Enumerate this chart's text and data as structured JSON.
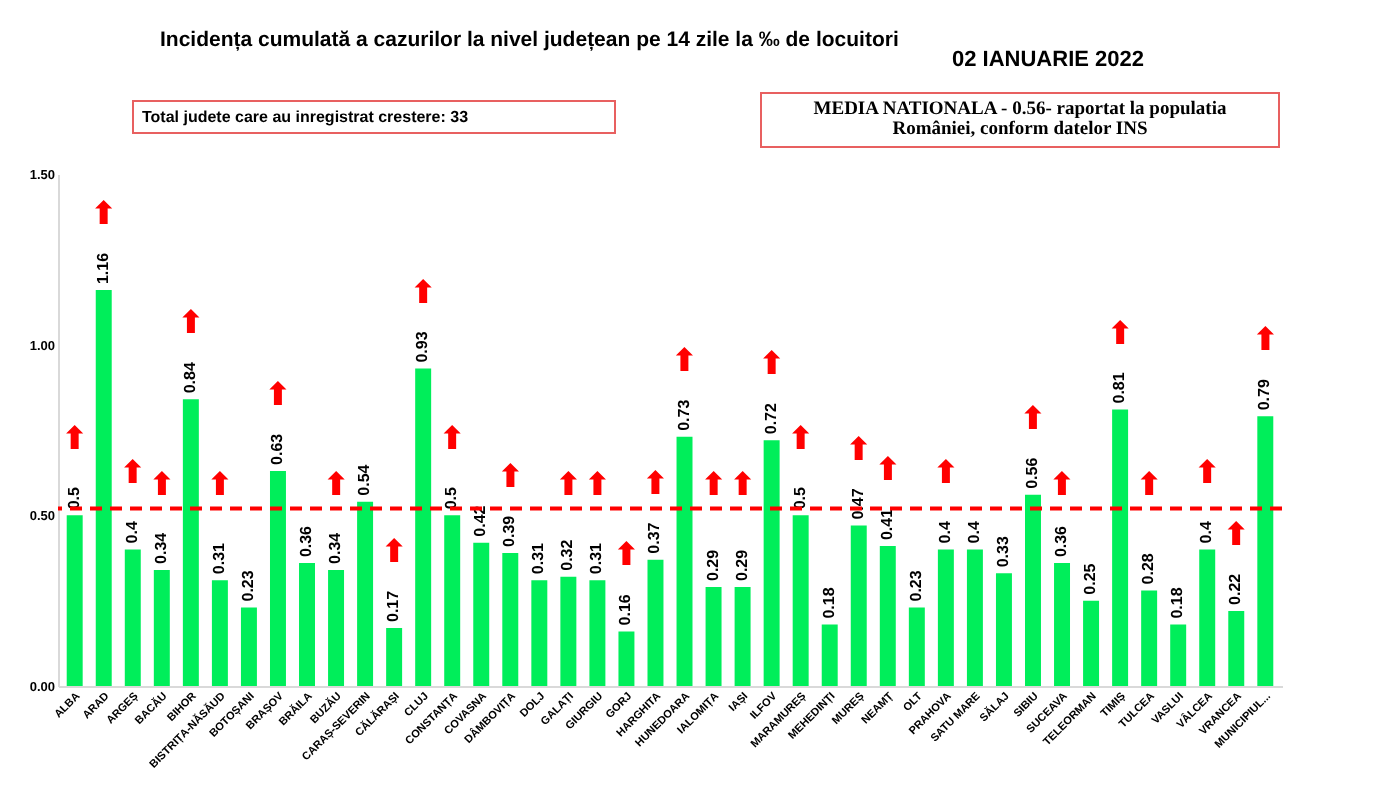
{
  "chart_data": {
    "type": "bar",
    "title": "Incidența cumulată a cazurilor la nivel județean pe 14 zile la ‰ de locuitori",
    "subtitle": "02 IANUARIE 2022",
    "categories": [
      "ALBA",
      "ARAD",
      "ARGEȘ",
      "BACĂU",
      "BIHOR",
      "BISTRIȚA-NĂSĂUD",
      "BOTOȘANI",
      "BRAȘOV",
      "BRĂILA",
      "BUZĂU",
      "CARAȘ-SEVERIN",
      "CĂLĂRAȘI",
      "CLUJ",
      "CONSTANȚA",
      "COVASNA",
      "DÂMBOVIȚA",
      "DOLJ",
      "GALAȚI",
      "GIURGIU",
      "GORJ",
      "HARGHITA",
      "HUNEDOARA",
      "IALOMIȚA",
      "IAȘI",
      "ILFOV",
      "MARAMUREȘ",
      "MEHEDINȚI",
      "MUREȘ",
      "NEAMȚ",
      "OLT",
      "PRAHOVA",
      "SATU MARE",
      "SĂLAJ",
      "SIBIU",
      "SUCEAVA",
      "TELEORMAN",
      "TIMIȘ",
      "TULCEA",
      "VASLUI",
      "VÂLCEA",
      "VRANCEA",
      "MUNICIPIUL..."
    ],
    "values": [
      0.5,
      1.16,
      0.4,
      0.34,
      0.84,
      0.31,
      0.23,
      0.63,
      0.36,
      0.34,
      0.54,
      0.17,
      0.93,
      0.5,
      0.42,
      0.39,
      0.31,
      0.32,
      0.31,
      0.16,
      0.37,
      0.73,
      0.29,
      0.29,
      0.72,
      0.5,
      0.18,
      0.47,
      0.41,
      0.23,
      0.4,
      0.4,
      0.33,
      0.56,
      0.36,
      0.25,
      0.81,
      0.28,
      0.18,
      0.4,
      0.22,
      0.79
    ],
    "color": "#00ee5a",
    "data_labels": true,
    "ylim": [
      0,
      1.5
    ],
    "yticks": [
      {
        "value": 0,
        "label": "0.00"
      },
      {
        "value": 0.5,
        "label": "0.50"
      },
      {
        "value": 1,
        "label": "1.00"
      },
      {
        "value": 1.5,
        "label": "1.50"
      }
    ],
    "grid": false,
    "ref_lines": [
      {
        "axis": "y",
        "value": 0.52,
        "color": "#ff0000",
        "line_style": "dashed"
      }
    ],
    "annotations": [
      "Total judete care au inregistrat crestere: 33",
      "MEDIA NATIONALA - 0.56-  raportat la populatia României, conform datelor INS",
      {
        "text": "⬆",
        "x": "ALBA",
        "y": 0.5
      },
      {
        "text": "⬆",
        "x": "ARAD",
        "y": 1.16
      },
      {
        "text": "⬆",
        "x": "ARGEȘ",
        "y": 0.4
      },
      {
        "text": "⬆",
        "x": "BACĂU",
        "y": 0.34
      },
      {
        "text": "⬆",
        "x": "BIHOR",
        "y": 0.84
      },
      {
        "text": "⬆",
        "x": "BISTRIȚA-NĂSĂUD",
        "y": 0.31
      },
      {
        "text": "⬆",
        "x": "BRAȘOV",
        "y": 0.63
      },
      {
        "text": "⬆",
        "x": "BUZĂU",
        "y": 0.34
      },
      {
        "text": "⬆",
        "x": "CĂLĂRAȘI",
        "y": 0.17
      },
      {
        "text": "⬆",
        "x": "CLUJ",
        "y": 0.93
      },
      {
        "text": "⬆",
        "x": "CONSTANȚA",
        "y": 0.5
      },
      {
        "text": "⬆",
        "x": "DÂMBOVIȚA",
        "y": 0.39
      },
      {
        "text": "⬆",
        "x": "GALAȚI",
        "y": 0.32
      },
      {
        "text": "⬆",
        "x": "GIURGIU",
        "y": 0.31
      },
      {
        "text": "⬆",
        "x": "GORJ",
        "y": 0.16
      },
      {
        "text": "⬆",
        "x": "HARGHITA",
        "y": 0.37
      },
      {
        "text": "⬆",
        "x": "HUNEDOARA",
        "y": 0.73
      },
      {
        "text": "⬆",
        "x": "IALOMIȚA",
        "y": 0.29
      },
      {
        "text": "⬆",
        "x": "IAȘI",
        "y": 0.29
      },
      {
        "text": "⬆",
        "x": "ILFOV",
        "y": 0.72
      },
      {
        "text": "⬆",
        "x": "MARAMUREȘ",
        "y": 0.5
      },
      {
        "text": "⬆",
        "x": "MUREȘ",
        "y": 0.47
      },
      {
        "text": "⬆",
        "x": "NEAMȚ",
        "y": 0.41
      },
      {
        "text": "⬆",
        "x": "PRAHOVA",
        "y": 0.4
      },
      {
        "text": "⬆",
        "x": "SIBIU",
        "y": 0.56
      },
      {
        "text": "⬆",
        "x": "SUCEAVA",
        "y": 0.36
      },
      {
        "text": "⬆",
        "x": "TIMIȘ",
        "y": 0.81
      },
      {
        "text": "⬆",
        "x": "TULCEA",
        "y": 0.28
      },
      {
        "text": "⬆",
        "x": "VÂLCEA",
        "y": 0.4
      },
      {
        "text": "⬆",
        "x": "VRANCEA",
        "y": 0.22
      },
      {
        "text": "⬆",
        "x": "MUNICIPIUL...",
        "y": 0.79
      }
    ]
  }
}
